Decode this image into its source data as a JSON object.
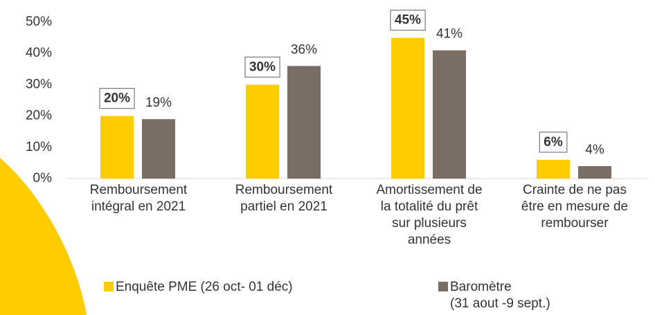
{
  "chart_data": {
    "type": "bar",
    "categories": [
      "Remboursement\nintégral en 2021",
      "Remboursement\npartiel en 2021",
      "Amortissement de\nla totalité du prêt\nsur plusieurs\nannées",
      "Crainte de ne pas\nêtre en mesure de\nrembourser"
    ],
    "series": [
      {
        "name": "Enquête PME (26 oct- 01 déc)",
        "color": "#ffcc00",
        "values": [
          20,
          30,
          45,
          6
        ],
        "value_labels": [
          "20%",
          "30%",
          "45%",
          "6%"
        ]
      },
      {
        "name": "Baromètre\n(31 aout -9 sept.)",
        "color": "#7a6e64",
        "values": [
          19,
          36,
          41,
          4
        ],
        "value_labels": [
          "19%",
          "36%",
          "41%",
          "4%"
        ]
      }
    ],
    "ylim": [
      0,
      50
    ],
    "yticks": [
      {
        "value": 0,
        "label": "0%"
      },
      {
        "value": 10,
        "label": "10%"
      },
      {
        "value": 20,
        "label": "20%"
      },
      {
        "value": 30,
        "label": "30%"
      },
      {
        "value": 40,
        "label": "40%"
      },
      {
        "value": 50,
        "label": "50%"
      }
    ]
  }
}
